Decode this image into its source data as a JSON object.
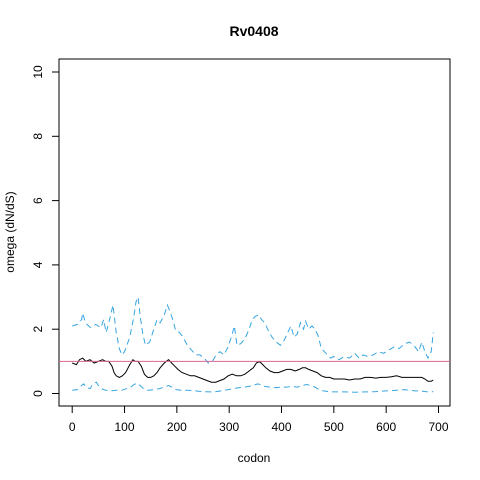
{
  "chart_data": {
    "type": "line",
    "title": "Rv0408",
    "xlabel": "codon",
    "ylabel": "omega (dN/dS)",
    "xlim": [
      0,
      700
    ],
    "ylim": [
      0,
      10
    ],
    "x_ticks": [
      "0",
      "100",
      "200",
      "300",
      "400",
      "500",
      "600",
      "700"
    ],
    "y_ticks": [
      "0",
      "2",
      "4",
      "6",
      "8",
      "10"
    ],
    "reference_line": {
      "y": 1,
      "color": "#d9668f"
    },
    "grid": false,
    "legend": "none",
    "series": [
      {
        "role": "upper",
        "style": "dashed",
        "color": "#38a5e0",
        "points": [
          [
            0,
            2.1
          ],
          [
            10,
            2.15
          ],
          [
            18,
            2.3
          ],
          [
            20,
            2.5
          ],
          [
            25,
            2.2
          ],
          [
            35,
            2.05
          ],
          [
            45,
            2.15
          ],
          [
            55,
            2.05
          ],
          [
            60,
            2.3
          ],
          [
            65,
            1.9
          ],
          [
            70,
            2.2
          ],
          [
            78,
            2.75
          ],
          [
            84,
            1.9
          ],
          [
            90,
            1.4
          ],
          [
            95,
            1.2
          ],
          [
            100,
            1.3
          ],
          [
            110,
            1.75
          ],
          [
            118,
            2.4
          ],
          [
            122,
            2.85
          ],
          [
            126,
            3.0
          ],
          [
            130,
            2.4
          ],
          [
            135,
            1.85
          ],
          [
            140,
            1.5
          ],
          [
            148,
            1.6
          ],
          [
            155,
            1.95
          ],
          [
            162,
            2.3
          ],
          [
            168,
            2.2
          ],
          [
            175,
            2.4
          ],
          [
            182,
            2.75
          ],
          [
            188,
            2.5
          ],
          [
            192,
            2.3
          ],
          [
            198,
            1.95
          ],
          [
            205,
            1.9
          ],
          [
            212,
            1.75
          ],
          [
            220,
            1.5
          ],
          [
            228,
            1.35
          ],
          [
            236,
            1.2
          ],
          [
            244,
            1.2
          ],
          [
            252,
            1.1
          ],
          [
            260,
            0.95
          ],
          [
            268,
            1.0
          ],
          [
            275,
            1.2
          ],
          [
            282,
            1.3
          ],
          [
            290,
            1.2
          ],
          [
            298,
            1.45
          ],
          [
            305,
            1.8
          ],
          [
            310,
            2.1
          ],
          [
            315,
            1.5
          ],
          [
            322,
            1.55
          ],
          [
            330,
            1.7
          ],
          [
            338,
            2.0
          ],
          [
            344,
            2.3
          ],
          [
            350,
            2.4
          ],
          [
            356,
            2.45
          ],
          [
            362,
            2.3
          ],
          [
            368,
            2.2
          ],
          [
            375,
            1.95
          ],
          [
            382,
            1.75
          ],
          [
            390,
            1.6
          ],
          [
            398,
            1.5
          ],
          [
            405,
            1.65
          ],
          [
            412,
            1.9
          ],
          [
            418,
            2.1
          ],
          [
            424,
            1.75
          ],
          [
            430,
            1.85
          ],
          [
            436,
            2.2
          ],
          [
            442,
            2.0
          ],
          [
            446,
            2.25
          ],
          [
            452,
            2.0
          ],
          [
            458,
            2.1
          ],
          [
            464,
            2.0
          ],
          [
            470,
            1.8
          ],
          [
            476,
            1.4
          ],
          [
            482,
            1.3
          ],
          [
            488,
            1.2
          ],
          [
            494,
            1.1
          ],
          [
            500,
            1.15
          ],
          [
            510,
            1.05
          ],
          [
            520,
            1.15
          ],
          [
            530,
            1.1
          ],
          [
            540,
            1.25
          ],
          [
            548,
            1.1
          ],
          [
            556,
            1.2
          ],
          [
            565,
            1.15
          ],
          [
            575,
            1.2
          ],
          [
            585,
            1.3
          ],
          [
            595,
            1.25
          ],
          [
            605,
            1.35
          ],
          [
            615,
            1.45
          ],
          [
            625,
            1.4
          ],
          [
            635,
            1.55
          ],
          [
            645,
            1.6
          ],
          [
            655,
            1.45
          ],
          [
            662,
            1.3
          ],
          [
            668,
            1.6
          ],
          [
            674,
            1.3
          ],
          [
            680,
            1.1
          ],
          [
            686,
            1.3
          ],
          [
            690,
            1.9
          ]
        ]
      },
      {
        "role": "estimate",
        "style": "solid",
        "color": "#000000",
        "points": [
          [
            0,
            0.95
          ],
          [
            8,
            0.9
          ],
          [
            14,
            1.05
          ],
          [
            20,
            1.1
          ],
          [
            26,
            1.0
          ],
          [
            34,
            1.05
          ],
          [
            42,
            0.95
          ],
          [
            50,
            1.0
          ],
          [
            58,
            1.05
          ],
          [
            64,
            1.0
          ],
          [
            70,
            1.0
          ],
          [
            76,
            0.85
          ],
          [
            80,
            0.65
          ],
          [
            84,
            0.55
          ],
          [
            90,
            0.5
          ],
          [
            96,
            0.55
          ],
          [
            102,
            0.65
          ],
          [
            110,
            0.9
          ],
          [
            116,
            1.05
          ],
          [
            120,
            1.0
          ],
          [
            126,
            1.0
          ],
          [
            132,
            0.85
          ],
          [
            138,
            0.6
          ],
          [
            144,
            0.5
          ],
          [
            150,
            0.5
          ],
          [
            156,
            0.55
          ],
          [
            162,
            0.65
          ],
          [
            168,
            0.8
          ],
          [
            176,
            0.95
          ],
          [
            184,
            1.05
          ],
          [
            190,
            0.95
          ],
          [
            196,
            0.85
          ],
          [
            202,
            0.75
          ],
          [
            210,
            0.65
          ],
          [
            218,
            0.6
          ],
          [
            226,
            0.55
          ],
          [
            234,
            0.55
          ],
          [
            242,
            0.5
          ],
          [
            250,
            0.45
          ],
          [
            258,
            0.4
          ],
          [
            266,
            0.35
          ],
          [
            274,
            0.35
          ],
          [
            282,
            0.4
          ],
          [
            290,
            0.45
          ],
          [
            298,
            0.55
          ],
          [
            306,
            0.6
          ],
          [
            314,
            0.55
          ],
          [
            322,
            0.55
          ],
          [
            330,
            0.6
          ],
          [
            338,
            0.7
          ],
          [
            346,
            0.8
          ],
          [
            352,
            0.95
          ],
          [
            358,
            1.0
          ],
          [
            364,
            0.9
          ],
          [
            370,
            0.8
          ],
          [
            378,
            0.7
          ],
          [
            386,
            0.65
          ],
          [
            394,
            0.65
          ],
          [
            402,
            0.7
          ],
          [
            410,
            0.75
          ],
          [
            418,
            0.75
          ],
          [
            426,
            0.7
          ],
          [
            434,
            0.75
          ],
          [
            440,
            0.8
          ],
          [
            446,
            0.8
          ],
          [
            452,
            0.75
          ],
          [
            460,
            0.7
          ],
          [
            468,
            0.65
          ],
          [
            476,
            0.55
          ],
          [
            484,
            0.5
          ],
          [
            492,
            0.5
          ],
          [
            500,
            0.45
          ],
          [
            510,
            0.45
          ],
          [
            520,
            0.45
          ],
          [
            530,
            0.42
          ],
          [
            540,
            0.45
          ],
          [
            550,
            0.45
          ],
          [
            560,
            0.5
          ],
          [
            570,
            0.5
          ],
          [
            580,
            0.48
          ],
          [
            590,
            0.5
          ],
          [
            600,
            0.5
          ],
          [
            610,
            0.52
          ],
          [
            620,
            0.55
          ],
          [
            630,
            0.5
          ],
          [
            640,
            0.5
          ],
          [
            650,
            0.5
          ],
          [
            660,
            0.5
          ],
          [
            668,
            0.5
          ],
          [
            674,
            0.45
          ],
          [
            680,
            0.38
          ],
          [
            686,
            0.38
          ],
          [
            690,
            0.42
          ]
        ]
      },
      {
        "role": "lower",
        "style": "dashed",
        "color": "#38a5e0",
        "points": [
          [
            0,
            0.1
          ],
          [
            10,
            0.12
          ],
          [
            18,
            0.25
          ],
          [
            22,
            0.3
          ],
          [
            26,
            0.2
          ],
          [
            34,
            0.15
          ],
          [
            40,
            0.3
          ],
          [
            46,
            0.35
          ],
          [
            50,
            0.25
          ],
          [
            56,
            0.15
          ],
          [
            64,
            0.1
          ],
          [
            74,
            0.08
          ],
          [
            84,
            0.1
          ],
          [
            94,
            0.1
          ],
          [
            104,
            0.15
          ],
          [
            112,
            0.2
          ],
          [
            118,
            0.28
          ],
          [
            124,
            0.32
          ],
          [
            130,
            0.25
          ],
          [
            138,
            0.12
          ],
          [
            146,
            0.1
          ],
          [
            156,
            0.12
          ],
          [
            166,
            0.15
          ],
          [
            176,
            0.2
          ],
          [
            184,
            0.25
          ],
          [
            190,
            0.2
          ],
          [
            198,
            0.12
          ],
          [
            208,
            0.1
          ],
          [
            220,
            0.1
          ],
          [
            235,
            0.08
          ],
          [
            250,
            0.06
          ],
          [
            262,
            0.05
          ],
          [
            272,
            0.05
          ],
          [
            285,
            0.08
          ],
          [
            298,
            0.12
          ],
          [
            308,
            0.15
          ],
          [
            318,
            0.18
          ],
          [
            328,
            0.2
          ],
          [
            338,
            0.22
          ],
          [
            346,
            0.25
          ],
          [
            354,
            0.3
          ],
          [
            360,
            0.28
          ],
          [
            368,
            0.22
          ],
          [
            378,
            0.2
          ],
          [
            390,
            0.18
          ],
          [
            400,
            0.2
          ],
          [
            410,
            0.2
          ],
          [
            420,
            0.22
          ],
          [
            430,
            0.2
          ],
          [
            440,
            0.25
          ],
          [
            448,
            0.28
          ],
          [
            456,
            0.25
          ],
          [
            464,
            0.2
          ],
          [
            472,
            0.12
          ],
          [
            480,
            0.08
          ],
          [
            490,
            0.06
          ],
          [
            500,
            0.05
          ],
          [
            520,
            0.05
          ],
          [
            540,
            0.04
          ],
          [
            560,
            0.05
          ],
          [
            580,
            0.06
          ],
          [
            600,
            0.08
          ],
          [
            620,
            0.1
          ],
          [
            635,
            0.12
          ],
          [
            645,
            0.1
          ],
          [
            655,
            0.08
          ],
          [
            665,
            0.08
          ],
          [
            675,
            0.06
          ],
          [
            685,
            0.05
          ],
          [
            690,
            0.06
          ]
        ]
      }
    ]
  }
}
